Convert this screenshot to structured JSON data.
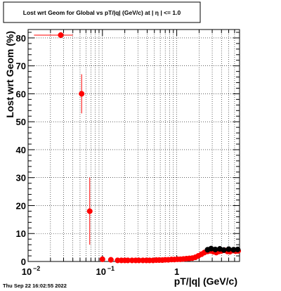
{
  "chart_data": {
    "type": "scatter",
    "title": "Lost wrt Geom for Global vs pT/|q| (GeV/c) at |  η  | <= 1.0",
    "xlabel": "pT/|q| (GeV/c)",
    "ylabel": "Lost wrt Geom (%)",
    "x_scale": "log",
    "xlim": [
      0.01,
      7
    ],
    "ylim": [
      0,
      83
    ],
    "grid": true,
    "x_major_tick_labels": [
      {
        "value": 0.01,
        "base": "10",
        "exp": "−2"
      },
      {
        "value": 0.1,
        "base": "10",
        "exp": "−1"
      },
      {
        "value": 1,
        "base": "1",
        "exp": ""
      }
    ],
    "y_tick_labels": [
      "0",
      "10",
      "20",
      "30",
      "40",
      "50",
      "60",
      "70",
      "80"
    ],
    "series": [
      {
        "color": "#ff0000",
        "points": [
          {
            "x": 0.0275,
            "y": 81,
            "xerr": [
              0.0155,
              0.0125
            ],
            "yerr": [
              1,
              1
            ]
          },
          {
            "x": 0.0525,
            "y": 60,
            "xerr": [
              0.0025,
              0.0025
            ],
            "yerr": [
              7,
              7
            ]
          },
          {
            "x": 0.0675,
            "y": 18,
            "xerr": [
              0.0025,
              0.0025
            ],
            "yerr": [
              12,
              12
            ]
          },
          {
            "x": 0.1,
            "y": 0.8,
            "xerr": [
              0.003,
              0.003
            ],
            "yerr": [
              1,
              1
            ]
          },
          {
            "x": 0.13,
            "y": 0.6,
            "xerr": [
              0.004,
              0.004
            ],
            "yerr": [
              0.6,
              0.6
            ]
          },
          {
            "x": 0.16,
            "y": 0.4
          },
          {
            "x": 0.18,
            "y": 0.4
          },
          {
            "x": 0.2,
            "y": 0.4
          },
          {
            "x": 0.22,
            "y": 0.4
          },
          {
            "x": 0.25,
            "y": 0.4
          },
          {
            "x": 0.28,
            "y": 0.4
          },
          {
            "x": 0.31,
            "y": 0.4
          },
          {
            "x": 0.35,
            "y": 0.4
          },
          {
            "x": 0.39,
            "y": 0.4
          },
          {
            "x": 0.43,
            "y": 0.4
          },
          {
            "x": 0.48,
            "y": 0.4
          },
          {
            "x": 0.53,
            "y": 0.5
          },
          {
            "x": 0.58,
            "y": 0.5
          },
          {
            "x": 0.64,
            "y": 0.5
          },
          {
            "x": 0.7,
            "y": 0.6
          },
          {
            "x": 0.77,
            "y": 0.6
          },
          {
            "x": 0.85,
            "y": 0.7
          },
          {
            "x": 0.93,
            "y": 0.7
          },
          {
            "x": 1.02,
            "y": 0.8
          },
          {
            "x": 1.12,
            "y": 0.8
          },
          {
            "x": 1.23,
            "y": 0.9
          },
          {
            "x": 1.35,
            "y": 1.0
          },
          {
            "x": 1.48,
            "y": 1.1
          },
          {
            "x": 1.62,
            "y": 1.2
          },
          {
            "x": 1.78,
            "y": 1.5
          },
          {
            "x": 1.95,
            "y": 2.0
          },
          {
            "x": 2.15,
            "y": 2.6
          },
          {
            "x": 2.35,
            "y": 3.2
          },
          {
            "x": 2.6,
            "y": 3.6
          },
          {
            "x": 2.85,
            "y": 3.8
          },
          {
            "x": 3.1,
            "y": 3.5
          },
          {
            "x": 3.4,
            "y": 3.2
          },
          {
            "x": 3.7,
            "y": 3.6
          },
          {
            "x": 4.0,
            "y": 3.8
          },
          {
            "x": 4.4,
            "y": 4.0
          },
          {
            "x": 4.8,
            "y": 3.6
          },
          {
            "x": 5.2,
            "y": 3.5
          },
          {
            "x": 5.7,
            "y": 3.9
          },
          {
            "x": 6.2,
            "y": 3.7
          },
          {
            "x": 6.7,
            "y": 3.8
          }
        ]
      },
      {
        "color": "#000000",
        "points": [
          {
            "x": 2.6,
            "y": 4.2
          },
          {
            "x": 2.9,
            "y": 4.6
          },
          {
            "x": 3.3,
            "y": 4.3
          },
          {
            "x": 3.8,
            "y": 4.5
          },
          {
            "x": 4.3,
            "y": 4.1
          },
          {
            "x": 5.0,
            "y": 4.4
          },
          {
            "x": 5.8,
            "y": 4.2
          },
          {
            "x": 6.6,
            "y": 4.3
          }
        ]
      }
    ]
  },
  "footer_timestamp": "Thu Sep 22 16:02:55 2022"
}
